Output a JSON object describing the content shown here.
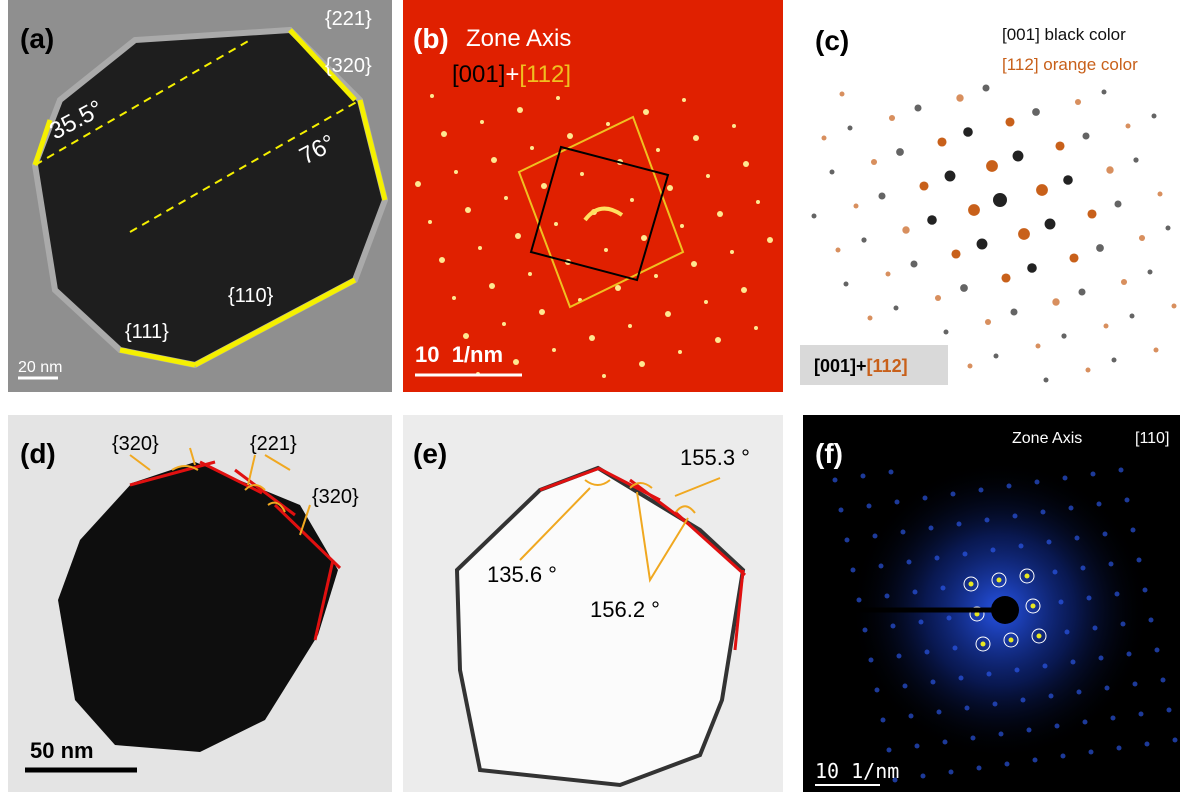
{
  "panel_a": {
    "label": "(a)",
    "annotations": [
      "{221}",
      "{320}",
      "35.5°",
      "76°",
      "{110}",
      "{111}"
    ],
    "scale_bar": "20 nm"
  },
  "panel_b": {
    "label": "(b)",
    "title": "Zone Axis",
    "zone_parts": [
      "[001]",
      "+",
      "[112]"
    ],
    "scale_bar": "10  1/nm"
  },
  "panel_c": {
    "label": "(c)",
    "legend": [
      "[001] black color",
      "[112] orange color"
    ],
    "caption_parts": [
      "[001]",
      "+",
      "[112]"
    ]
  },
  "panel_d": {
    "label": "(d)",
    "annotations": [
      "{320}",
      "{221}",
      "{320}"
    ],
    "scale_bar": "50 nm"
  },
  "panel_e": {
    "label": "(e)",
    "annotations": [
      "155.3 °",
      "135.6 °",
      "156.2 °"
    ]
  },
  "panel_f": {
    "label": "(f)",
    "title": "Zone Axis",
    "zone": "[110]",
    "scale_bar": "10 1/nm"
  }
}
